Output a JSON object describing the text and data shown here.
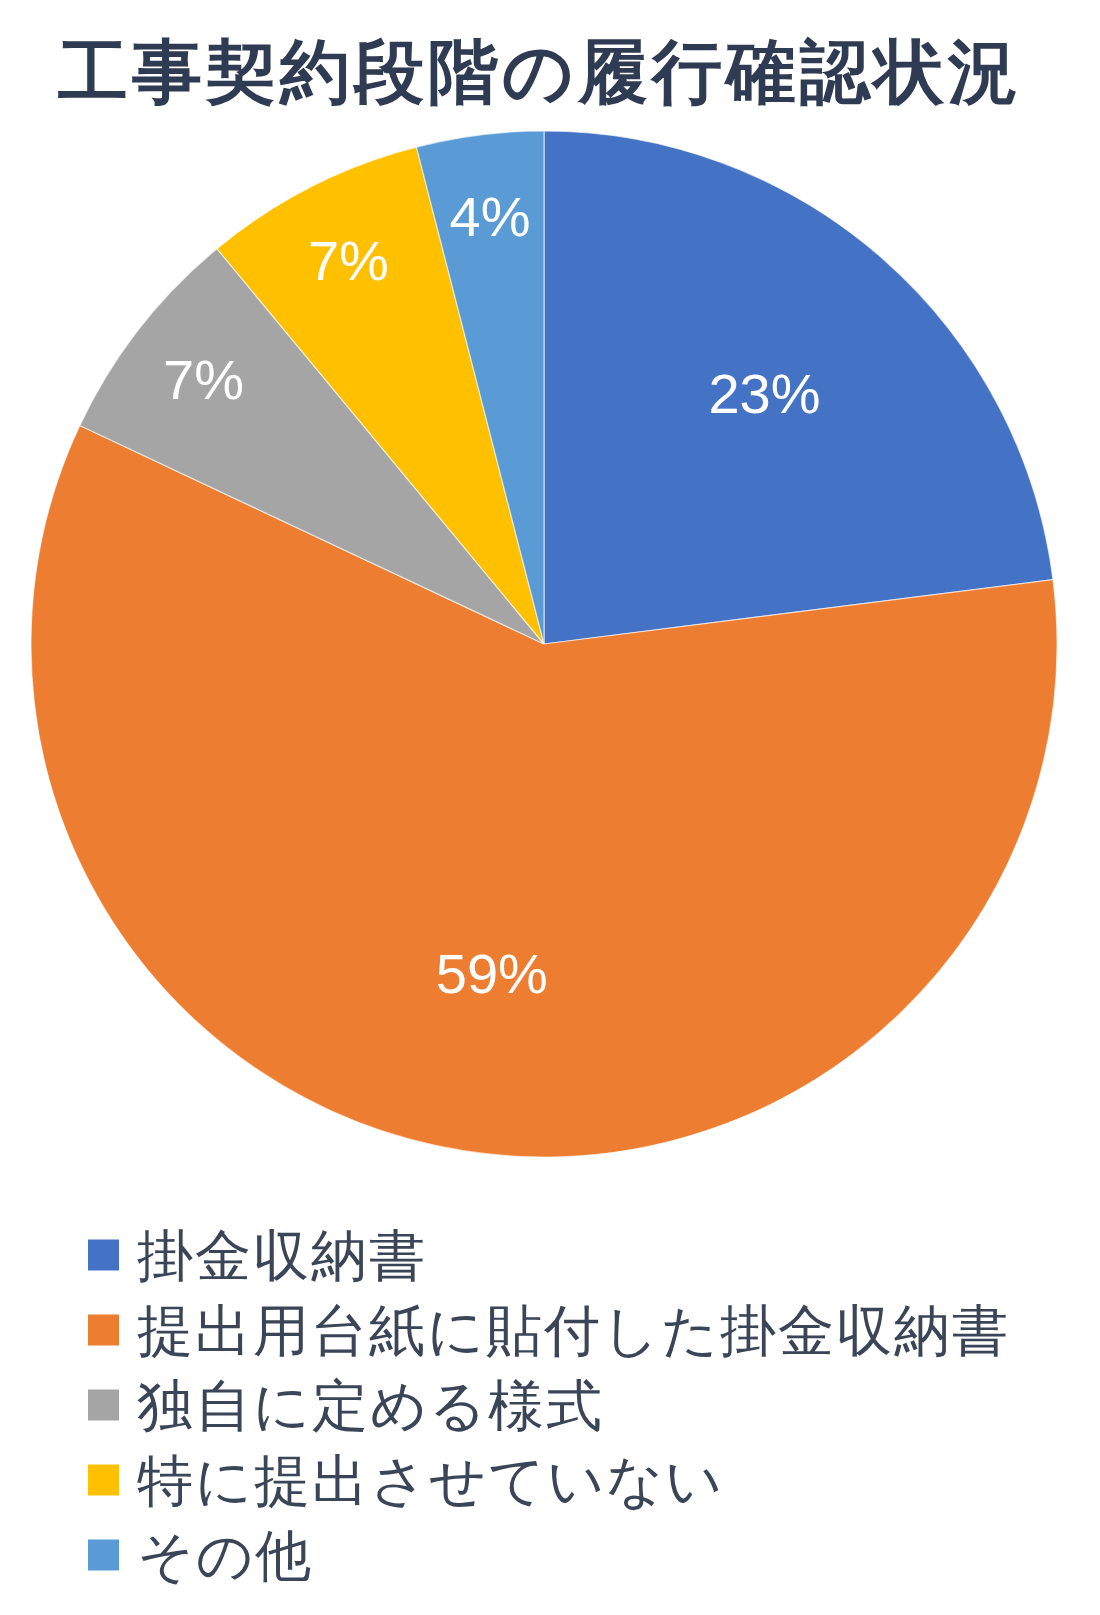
{
  "chart_data": {
    "type": "pie",
    "title": "工事契約段階の履行確認状況",
    "categories": [
      "掛金収納書",
      "提出用台紙に貼付した掛金収納書",
      "独自に定める様式",
      "特に提出させていない",
      "その他"
    ],
    "values": [
      23,
      59,
      7,
      7,
      4
    ],
    "colors": [
      "#4472c4",
      "#ed7d31",
      "#a5a5a5",
      "#ffc000",
      "#5b9bd5"
    ],
    "value_labels": [
      "23%",
      "59%",
      "7%",
      "7%",
      "4%"
    ],
    "legend": "bottom"
  }
}
